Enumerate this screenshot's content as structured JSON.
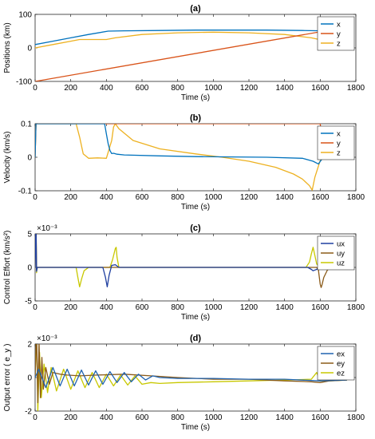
{
  "chart_data": [
    {
      "type": "line",
      "title": "(a)",
      "xlabel": "Time (s)",
      "ylabel": "Positions (km)",
      "xlim": [
        0,
        1800
      ],
      "ylim": [
        -100,
        100
      ],
      "xticks": [
        0,
        200,
        400,
        600,
        800,
        1000,
        1200,
        1400,
        1600,
        1800
      ],
      "yticks": [
        -100,
        0,
        100
      ],
      "exponent": "",
      "legend_position": "top-right",
      "series": [
        {
          "name": "x",
          "color": "#0072BD",
          "x": [
            0,
            100,
            200,
            300,
            410,
            500,
            700,
            900,
            1100,
            1300,
            1500,
            1620,
            1750
          ],
          "y": [
            10,
            20,
            30,
            40,
            50,
            51,
            52,
            53,
            53,
            53,
            52,
            51,
            51
          ]
        },
        {
          "name": "y",
          "color": "#D95319",
          "x": [
            0,
            1750
          ],
          "y": [
            -100,
            62
          ]
        },
        {
          "name": "z",
          "color": "#EDB120",
          "x": [
            0,
            100,
            200,
            250,
            400,
            450,
            600,
            800,
            1000,
            1200,
            1400,
            1550,
            1620,
            1750
          ],
          "y": [
            0,
            10,
            20,
            25,
            25,
            30,
            40,
            45,
            47,
            45,
            40,
            30,
            22,
            22
          ]
        }
      ]
    },
    {
      "type": "line",
      "title": "(b)",
      "xlabel": "Time (s)",
      "ylabel": "Velocity (km/s)",
      "xlim": [
        0,
        1800
      ],
      "ylim": [
        -0.1,
        0.1
      ],
      "xticks": [
        0,
        200,
        400,
        600,
        800,
        1000,
        1200,
        1400,
        1600,
        1800
      ],
      "yticks": [
        -0.1,
        0,
        0.1
      ],
      "exponent": "",
      "legend_position": "top-right",
      "series": [
        {
          "name": "x",
          "color": "#0072BD",
          "x": [
            0,
            5,
            20,
            390,
            400,
            410,
            420,
            430,
            440,
            460,
            500,
            700,
            900,
            1100,
            1300,
            1500,
            1560,
            1590,
            1610,
            1640
          ],
          "y": [
            0,
            0.1,
            0.1,
            0.1,
            0.07,
            0.04,
            0.02,
            0.011,
            0.012,
            0.009,
            0.007,
            0.004,
            0.002,
            0.001,
            0,
            -0.003,
            -0.012,
            -0.02,
            -0.005,
            0
          ]
        },
        {
          "name": "y",
          "color": "#D95319",
          "x": [
            0,
            5,
            20,
            1600,
            1610,
            1620,
            1640
          ],
          "y": [
            0,
            0.1,
            0.1,
            0.1,
            0.06,
            0.02,
            0
          ]
        },
        {
          "name": "z",
          "color": "#EDB120",
          "x": [
            0,
            5,
            20,
            230,
            250,
            270,
            300,
            350,
            400,
            430,
            440,
            450,
            470,
            550,
            700,
            900,
            1050,
            1200,
            1350,
            1450,
            1500,
            1540,
            1555,
            1570,
            1600,
            1620
          ],
          "y": [
            0,
            0.1,
            0.1,
            0.1,
            0.06,
            0.01,
            -0.003,
            -0.002,
            -0.003,
            0.05,
            0.09,
            0.1,
            0.085,
            0.05,
            0.025,
            0.01,
            0,
            -0.012,
            -0.03,
            -0.05,
            -0.065,
            -0.085,
            -0.098,
            -0.06,
            -0.01,
            0
          ]
        }
      ]
    },
    {
      "type": "line",
      "title": "(c)",
      "xlabel": "Time (s)",
      "ylabel": "Control Effort (km/s²)",
      "xlim": [
        0,
        1800
      ],
      "ylim": [
        -5,
        5
      ],
      "xticks": [
        0,
        200,
        400,
        600,
        800,
        1000,
        1200,
        1400,
        1600,
        1800
      ],
      "yticks": [
        -5,
        0,
        5
      ],
      "exponent": "×10⁻³",
      "legend_position": "top-right",
      "series": [
        {
          "name": "ux",
          "color": "#1F3FA0",
          "x": [
            0,
            5,
            8,
            12,
            380,
            395,
            405,
            415,
            430,
            450,
            470,
            1530,
            1550,
            1560,
            1580,
            1600,
            1650,
            1750
          ],
          "y": [
            0,
            7,
            -0.6,
            0,
            0,
            -1.5,
            -2.9,
            -1.2,
            0.3,
            0.4,
            0,
            0,
            -0.3,
            -0.5,
            -0.3,
            0,
            0,
            0
          ]
        },
        {
          "name": "uy",
          "color": "#8A5A19",
          "x": [
            0,
            5,
            8,
            12,
            1580,
            1590,
            1600,
            1605,
            1610,
            1620,
            1640,
            1660,
            1750
          ],
          "y": [
            0,
            7,
            -0.3,
            0,
            0,
            -0.4,
            -2.5,
            -3.0,
            -2.6,
            -1.5,
            -0.4,
            0,
            0
          ]
        },
        {
          "name": "uz",
          "color": "#C8C800",
          "x": [
            0,
            5,
            8,
            12,
            230,
            240,
            250,
            260,
            275,
            300,
            420,
            435,
            450,
            455,
            460,
            470,
            1520,
            1540,
            1550,
            1560,
            1570,
            1580,
            1600,
            1750
          ],
          "y": [
            0,
            7,
            -0.8,
            0,
            0,
            -1.5,
            -2.9,
            -1.8,
            -0.5,
            0,
            0,
            1.2,
            2.8,
            3.0,
            1.5,
            0,
            0,
            0.8,
            2.0,
            3.0,
            1.8,
            0.5,
            0,
            0
          ]
        }
      ]
    },
    {
      "type": "line",
      "title": "(d)",
      "xlabel": "Time (s)",
      "ylabel": "Output error ( e_y )",
      "xlim": [
        0,
        1800
      ],
      "ylim": [
        -2,
        2
      ],
      "xticks": [
        0,
        200,
        400,
        600,
        800,
        1000,
        1200,
        1400,
        1600,
        1800
      ],
      "yticks": [
        -2,
        0,
        2
      ],
      "exponent": "×10⁻³",
      "legend_position": "top-right",
      "series": [
        {
          "name": "ex",
          "color": "#1F63B0",
          "x": [
            0,
            20,
            60,
            100,
            140,
            180,
            220,
            260,
            300,
            340,
            380,
            420,
            460,
            500,
            540,
            580,
            620,
            660,
            700,
            800,
            1000,
            1200,
            1400,
            1600,
            1750
          ],
          "y": [
            0,
            0.5,
            -0.6,
            0.6,
            -0.5,
            0.5,
            -0.5,
            0.45,
            -0.45,
            0.4,
            -0.4,
            0.35,
            -0.3,
            0.3,
            -0.25,
            0.2,
            -0.15,
            0.1,
            0,
            -0.05,
            -0.05,
            -0.1,
            -0.1,
            -0.2,
            -0.15
          ]
        },
        {
          "name": "ey",
          "color": "#8A5A19",
          "x": [
            0,
            8,
            15,
            22,
            30,
            38,
            46,
            60,
            80,
            100,
            140,
            180,
            250,
            350,
            500,
            650,
            800,
            1000,
            1200,
            1400,
            1550,
            1600,
            1650,
            1750
          ],
          "y": [
            0,
            2.8,
            -1.5,
            2.2,
            -1.2,
            1.2,
            -0.7,
            0.6,
            -0.4,
            0.3,
            0.2,
            0.15,
            0.1,
            0.15,
            0.2,
            0.1,
            0,
            -0.1,
            -0.1,
            -0.2,
            -0.25,
            -0.3,
            -0.2,
            -0.15
          ]
        },
        {
          "name": "ez",
          "color": "#C8C800",
          "x": [
            0,
            8,
            15,
            25,
            35,
            50,
            70,
            90,
            120,
            160,
            200,
            240,
            280,
            320,
            360,
            400,
            440,
            480,
            520,
            560,
            600,
            650,
            700,
            800,
            1000,
            1200,
            1400,
            1550,
            1580,
            1600,
            1650,
            1750
          ],
          "y": [
            0,
            2.8,
            -2.0,
            1.5,
            -1.2,
            0.8,
            -0.9,
            0.6,
            -0.8,
            0.5,
            -0.7,
            0.4,
            -0.6,
            0.3,
            -0.6,
            0.2,
            -0.5,
            0.15,
            -0.45,
            0.1,
            -0.4,
            -0.3,
            -0.35,
            -0.3,
            -0.25,
            -0.2,
            -0.15,
            -0.1,
            0.3,
            -0.2,
            -0.2,
            -0.15
          ]
        }
      ]
    }
  ]
}
